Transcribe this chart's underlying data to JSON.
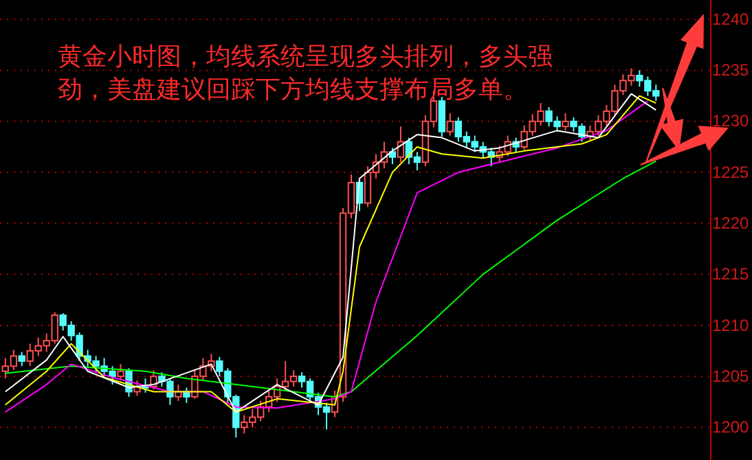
{
  "chart_data": {
    "type": "candlestick",
    "categories": [
      null,
      null,
      null,
      null,
      null,
      null,
      null,
      null,
      null,
      null,
      null,
      null,
      null,
      null,
      null,
      null,
      null,
      null,
      null,
      null,
      null,
      null,
      null,
      null,
      null,
      null,
      null,
      null,
      null,
      null,
      null,
      null,
      null,
      null,
      null,
      null,
      null,
      null,
      null,
      null,
      null,
      null,
      null,
      null,
      null,
      null,
      null,
      null,
      null,
      null,
      null,
      null,
      null,
      null,
      null,
      null,
      null,
      null,
      null,
      null,
      null,
      null,
      null,
      null,
      null,
      null,
      null,
      null,
      null,
      null,
      null,
      null,
      null,
      null,
      null,
      null,
      null,
      null,
      null,
      null,
      null,
      null,
      null,
      null,
      null,
      null
    ],
    "ohlc": [
      [
        1205.5,
        1206.8,
        1204.8,
        1206
      ],
      [
        1206,
        1207.6,
        1205.6,
        1207
      ],
      [
        1207,
        1207.4,
        1206,
        1206.5
      ],
      [
        1206.5,
        1208.2,
        1206,
        1207.5
      ],
      [
        1207.5,
        1208.8,
        1207,
        1208
      ],
      [
        1208,
        1209.2,
        1207.4,
        1208.5
      ],
      [
        1208.5,
        1211.3,
        1208.2,
        1211
      ],
      [
        1211,
        1211.2,
        1209.5,
        1210
      ],
      [
        1210,
        1210.4,
        1208.5,
        1209
      ],
      [
        1209,
        1209.3,
        1206.5,
        1207
      ],
      [
        1207,
        1207.6,
        1205.8,
        1206.5
      ],
      [
        1206.5,
        1207,
        1205.4,
        1206
      ],
      [
        1206,
        1206.8,
        1205,
        1205.5
      ],
      [
        1205.5,
        1206,
        1204.2,
        1205
      ],
      [
        1205,
        1206.2,
        1204.6,
        1205.5
      ],
      [
        1205.5,
        1205.8,
        1203,
        1203.5
      ],
      [
        1203.5,
        1204.6,
        1203.1,
        1204
      ],
      [
        1204,
        1204.8,
        1203.4,
        1204
      ],
      [
        1204,
        1205.6,
        1203.7,
        1205
      ],
      [
        1205,
        1205.4,
        1204,
        1204.5
      ],
      [
        1204.5,
        1204.8,
        1202.2,
        1203
      ],
      [
        1203,
        1204.2,
        1202.6,
        1203.5
      ],
      [
        1203.5,
        1203.9,
        1202.4,
        1203
      ],
      [
        1203,
        1205.6,
        1202.8,
        1205
      ],
      [
        1205,
        1206.8,
        1204.6,
        1206
      ],
      [
        1206,
        1207.2,
        1205.5,
        1206.5
      ],
      [
        1206.5,
        1206.9,
        1205,
        1205.5
      ],
      [
        1205.5,
        1205.8,
        1202.4,
        1203
      ],
      [
        1203,
        1203.2,
        1199,
        1200
      ],
      [
        1200,
        1201.2,
        1199.4,
        1200.5
      ],
      [
        1200.5,
        1201.8,
        1200,
        1201
      ],
      [
        1201,
        1202.6,
        1200.6,
        1202
      ],
      [
        1202,
        1203.6,
        1201.5,
        1203
      ],
      [
        1203,
        1204.8,
        1202.5,
        1204
      ],
      [
        1204,
        1206.5,
        1203.6,
        1204.5
      ],
      [
        1204.5,
        1205.6,
        1204,
        1205
      ],
      [
        1205,
        1205.4,
        1203.9,
        1204.5
      ],
      [
        1204.5,
        1204.8,
        1202.5,
        1203
      ],
      [
        1203,
        1203.4,
        1201.2,
        1202
      ],
      [
        1202,
        1202.4,
        1199.8,
        1201.5
      ],
      [
        1201.5,
        1203.6,
        1201,
        1203
      ],
      [
        1203,
        1221.5,
        1202.5,
        1221
      ],
      [
        1221,
        1224.8,
        1220.5,
        1224
      ],
      [
        1224,
        1224.4,
        1221.2,
        1222
      ],
      [
        1222,
        1225.6,
        1221.6,
        1225
      ],
      [
        1225,
        1226.8,
        1224.4,
        1226
      ],
      [
        1226,
        1228,
        1225.4,
        1227
      ],
      [
        1227,
        1227.4,
        1225.8,
        1226.5
      ],
      [
        1226.5,
        1229.5,
        1226,
        1228
      ],
      [
        1228,
        1228.4,
        1225.8,
        1226.5
      ],
      [
        1226.5,
        1227,
        1225.2,
        1226
      ],
      [
        1226,
        1230.6,
        1225.6,
        1230
      ],
      [
        1230,
        1233,
        1229.4,
        1232
      ],
      [
        1232,
        1232.4,
        1228.5,
        1229
      ],
      [
        1229,
        1230.8,
        1228.6,
        1230
      ],
      [
        1230,
        1230.4,
        1228,
        1228.5
      ],
      [
        1228.5,
        1229,
        1227.4,
        1228
      ],
      [
        1228,
        1228.6,
        1227,
        1227.5
      ],
      [
        1227.5,
        1228,
        1226.4,
        1227
      ],
      [
        1227,
        1227.4,
        1225.6,
        1226.5
      ],
      [
        1226.5,
        1227.6,
        1226,
        1227
      ],
      [
        1227,
        1228.6,
        1226.6,
        1228
      ],
      [
        1228,
        1228.4,
        1227,
        1227.5
      ],
      [
        1227.5,
        1229.6,
        1227.2,
        1229
      ],
      [
        1229,
        1230.7,
        1228.6,
        1230
      ],
      [
        1230,
        1231.8,
        1229.6,
        1231
      ],
      [
        1231,
        1231.4,
        1229.5,
        1230
      ],
      [
        1230,
        1230.5,
        1229,
        1229.5
      ],
      [
        1229.5,
        1230.8,
        1229.1,
        1230
      ],
      [
        1230,
        1230.4,
        1229,
        1229.5
      ],
      [
        1229.5,
        1229.8,
        1228,
        1228.5
      ],
      [
        1228.5,
        1229.6,
        1228.1,
        1229
      ],
      [
        1229,
        1230.6,
        1228.6,
        1230
      ],
      [
        1230,
        1231.6,
        1229.6,
        1231
      ],
      [
        1231,
        1233.6,
        1230.6,
        1233
      ],
      [
        1233,
        1234.6,
        1232.6,
        1234
      ],
      [
        1234,
        1235.2,
        1233.5,
        1234.5
      ],
      [
        1234.5,
        1235,
        1233.4,
        1234
      ],
      [
        1234,
        1234.4,
        1232.5,
        1233
      ],
      [
        1233,
        1233.6,
        1232,
        1232.5
      ],
      null,
      null,
      null,
      null,
      null,
      null
    ],
    "colors": [
      "#ff5050",
      "#ff5050",
      "#54fcfc",
      "#ff5050",
      "#ff5050",
      "#ff5050",
      "#ff5050",
      "#54fcfc",
      "#54fcfc",
      "#54fcfc",
      "#54fcfc",
      "#54fcfc",
      "#54fcfc",
      "#54fcfc",
      "#ff5050",
      "#54fcfc",
      "#ff5050",
      "#54fcfc",
      "#ff5050",
      "#54fcfc",
      "#54fcfc",
      "#ff5050",
      "#54fcfc",
      "#ff5050",
      "#ff5050",
      "#ff5050",
      "#54fcfc",
      "#54fcfc",
      "#54fcfc",
      "#ff5050",
      "#ff5050",
      "#ff5050",
      "#ff5050",
      "#ff5050",
      "#ff5050",
      "#ff5050",
      "#54fcfc",
      "#54fcfc",
      "#54fcfc",
      "#54fcfc",
      "#ff5050",
      "#ff5050",
      "#ff5050",
      "#54fcfc",
      "#ff5050",
      "#ff5050",
      "#ff5050",
      "#54fcfc",
      "#ff5050",
      "#54fcfc",
      "#54fcfc",
      "#ff5050",
      "#ff5050",
      "#54fcfc",
      "#ff5050",
      "#54fcfc",
      "#54fcfc",
      "#54fcfc",
      "#54fcfc",
      "#54fcfc",
      "#ff5050",
      "#ff5050",
      "#54fcfc",
      "#ff5050",
      "#ff5050",
      "#ff5050",
      "#54fcfc",
      "#54fcfc",
      "#ff5050",
      "#54fcfc",
      "#54fcfc",
      "#ff5050",
      "#ff5050",
      "#ff5050",
      "#ff5050",
      "#ff5050",
      "#ff5050",
      "#54fcfc",
      "#54fcfc",
      "#54fcfc",
      null,
      null,
      null,
      null,
      null,
      null
    ],
    "series": [
      {
        "type": "line",
        "color": "#00ff00",
        "values": [
          1205.3,
          null,
          null,
          null,
          null,
          null,
          null,
          null,
          1206,
          null,
          null,
          null,
          null,
          null,
          null,
          null,
          null,
          1205.5,
          null,
          null,
          null,
          null,
          1204.8,
          null,
          null,
          null,
          null,
          null,
          1204.2,
          null,
          null,
          null,
          null,
          null,
          null,
          null,
          null,
          null,
          null,
          null,
          1203,
          null,
          1203.5,
          null,
          null,
          null,
          null,
          null,
          null,
          null,
          1209,
          null,
          null,
          null,
          null,
          null,
          null,
          null,
          1215,
          null,
          null,
          null,
          null,
          null,
          null,
          null,
          null,
          1220.3,
          null,
          null,
          null,
          null,
          null,
          null,
          null,
          1224.4,
          null,
          null,
          null,
          1226.1,
          null,
          null,
          null,
          null,
          null,
          null
        ]
      },
      {
        "type": "line",
        "color": "#ff00ff",
        "values": [
          1201.5,
          null,
          null,
          null,
          null,
          1204.2,
          null,
          null,
          1206.2,
          null,
          null,
          null,
          null,
          1204.9,
          null,
          null,
          null,
          null,
          null,
          null,
          1203.5,
          null,
          null,
          null,
          1203.5,
          null,
          null,
          null,
          1202,
          null,
          null,
          null,
          null,
          1201.9,
          null,
          null,
          null,
          null,
          null,
          null,
          1202.8,
          null,
          1203.5,
          null,
          null,
          1212.3,
          null,
          null,
          null,
          null,
          1223,
          null,
          null,
          null,
          null,
          1225,
          null,
          null,
          null,
          null,
          1226,
          null,
          null,
          null,
          null,
          null,
          null,
          1227.4,
          null,
          null,
          null,
          null,
          null,
          1229.1,
          null,
          null,
          null,
          null,
          1232,
          null,
          null,
          null,
          null,
          null,
          null,
          null
        ]
      },
      {
        "type": "line",
        "color": "#ffff00",
        "values": [
          1202.2,
          null,
          null,
          null,
          null,
          1205.5,
          null,
          null,
          1208.2,
          null,
          null,
          null,
          1204.9,
          null,
          null,
          null,
          null,
          null,
          1203.5,
          null,
          null,
          null,
          null,
          null,
          null,
          1203.5,
          null,
          null,
          1201.5,
          null,
          null,
          null,
          null,
          1202.8,
          null,
          null,
          null,
          null,
          null,
          null,
          1202.2,
          1205.5,
          null,
          1217.7,
          null,
          null,
          null,
          1225,
          null,
          null,
          1227.5,
          null,
          null,
          1226.8,
          null,
          null,
          null,
          null,
          1226.4,
          null,
          null,
          null,
          null,
          1227.1,
          null,
          null,
          null,
          null,
          null,
          null,
          1227.8,
          null,
          null,
          1228.7,
          null,
          null,
          null,
          1232.5,
          null,
          1231.8,
          null,
          null,
          null,
          null,
          null,
          null
        ]
      },
      {
        "type": "line",
        "color": "#ffffff",
        "values": [
          1203.5,
          null,
          null,
          null,
          null,
          1206.6,
          null,
          1208.9,
          null,
          null,
          1205.5,
          null,
          null,
          null,
          null,
          1203.9,
          null,
          null,
          1204.2,
          null,
          null,
          null,
          null,
          null,
          null,
          1206.2,
          null,
          null,
          1201.5,
          null,
          null,
          null,
          null,
          1204.2,
          null,
          null,
          null,
          null,
          1202.2,
          null,
          null,
          1206.9,
          null,
          1224.4,
          null,
          null,
          null,
          1227.1,
          null,
          null,
          1228.7,
          null,
          null,
          1228.4,
          null,
          null,
          null,
          1227.1,
          null,
          null,
          1227.4,
          null,
          null,
          null,
          null,
          null,
          null,
          1229.1,
          null,
          null,
          null,
          null,
          1228.4,
          null,
          null,
          null,
          1232.7,
          null,
          null,
          1231.1,
          null,
          null,
          null,
          null,
          null,
          null
        ]
      }
    ],
    "ylim": [
      1196.8,
      1241.9
    ],
    "yticks": [
      1200,
      1205,
      1210,
      1215,
      1220,
      1225,
      1230,
      1235,
      1240
    ],
    "grid": "y",
    "tick_labels": "y",
    "annotations": [
      "黄金小时图，均线系统呈现多头排列，多头强劲，美盘建议回踩下方均线支撑布局多单。"
    ]
  }
}
